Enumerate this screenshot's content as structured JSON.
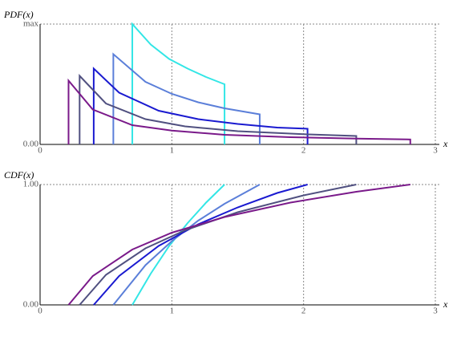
{
  "chart_data": [
    {
      "type": "line",
      "y_label": "PDF(x)",
      "x_label": "x",
      "xlim": [
        0,
        3
      ],
      "xticks": [
        0,
        1,
        2,
        3
      ],
      "ylim": [
        0,
        1
      ],
      "yticks": [
        {
          "value": 0,
          "label": "0.00"
        },
        {
          "value": 1,
          "label": "max"
        }
      ],
      "grid": true,
      "series": [
        {
          "color": "#33e6e6",
          "x": [
            0.7,
            0.7,
            0.84,
            0.98,
            1.12,
            1.26,
            1.4,
            1.4
          ],
          "values": [
            0,
            1,
            0.83,
            0.71,
            0.63,
            0.56,
            0.5,
            0
          ]
        },
        {
          "color": "#5b7fd9",
          "x": [
            0.556,
            0.556,
            0.8,
            1.0,
            1.2,
            1.4,
            1.667,
            1.667
          ],
          "values": [
            0,
            0.75,
            0.52,
            0.42,
            0.35,
            0.3,
            0.25,
            0
          ]
        },
        {
          "color": "#1a1ad0",
          "x": [
            0.407,
            0.407,
            0.6,
            0.9,
            1.2,
            1.5,
            1.8,
            2.03,
            2.03
          ],
          "values": [
            0,
            0.63,
            0.43,
            0.28,
            0.21,
            0.17,
            0.14,
            0.13,
            0
          ]
        },
        {
          "color": "#505080",
          "x": [
            0.3,
            0.3,
            0.5,
            0.8,
            1.1,
            1.5,
            2.0,
            2.4,
            2.4
          ],
          "values": [
            0,
            0.57,
            0.34,
            0.21,
            0.15,
            0.11,
            0.085,
            0.07,
            0
          ]
        },
        {
          "color": "#7a1a8a",
          "x": [
            0.216,
            0.216,
            0.4,
            0.7,
            1.0,
            1.4,
            1.9,
            2.4,
            2.81,
            2.81
          ],
          "values": [
            0,
            0.53,
            0.29,
            0.16,
            0.115,
            0.08,
            0.06,
            0.048,
            0.041,
            0
          ]
        }
      ]
    },
    {
      "type": "line",
      "y_label": "CDF(x)",
      "x_label": "x",
      "xlim": [
        0,
        3
      ],
      "xticks": [
        0,
        1,
        2,
        3
      ],
      "ylim": [
        0,
        1
      ],
      "yticks": [
        {
          "value": 0,
          "label": "0.00"
        },
        {
          "value": 1,
          "label": "1.00"
        }
      ],
      "grid": true,
      "series": [
        {
          "color": "#33e6e6",
          "x": [
            0.7,
            0.84,
            0.98,
            1.12,
            1.26,
            1.4
          ],
          "values": [
            0,
            0.26,
            0.49,
            0.68,
            0.85,
            1
          ]
        },
        {
          "color": "#5b7fd9",
          "x": [
            0.556,
            0.8,
            1.0,
            1.2,
            1.4,
            1.667
          ],
          "values": [
            0,
            0.33,
            0.53,
            0.7,
            0.84,
            1
          ]
        },
        {
          "color": "#1a1ad0",
          "x": [
            0.407,
            0.6,
            0.9,
            1.2,
            1.5,
            1.8,
            2.03
          ],
          "values": [
            0,
            0.24,
            0.49,
            0.67,
            0.81,
            0.93,
            1
          ]
        },
        {
          "color": "#505080",
          "x": [
            0.3,
            0.5,
            0.8,
            1.1,
            1.5,
            2.0,
            2.4
          ],
          "values": [
            0,
            0.25,
            0.47,
            0.62,
            0.77,
            0.91,
            1
          ]
        },
        {
          "color": "#7a1a8a",
          "x": [
            0.216,
            0.4,
            0.7,
            1.0,
            1.4,
            1.9,
            2.4,
            2.81
          ],
          "values": [
            0,
            0.24,
            0.46,
            0.6,
            0.73,
            0.85,
            0.94,
            1
          ]
        }
      ]
    }
  ]
}
